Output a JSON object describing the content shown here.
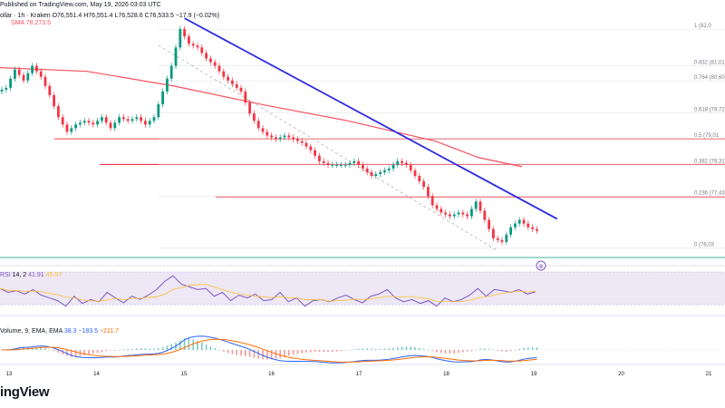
{
  "header": {
    "published": "Published on TradingView.com, May 19, 2026 03:03 UTC",
    "symbol_line": "ollar · 1h · Kraken",
    "ohlc": "O76,551.4 H76,551.4 L76,528.6 C76,533.5 −17.9 (−0.02%)",
    "sma_label": "SMA",
    "sma_value": "78,273.5"
  },
  "brand": {
    "logo_text": "ingView"
  },
  "colors": {
    "up": "#089981",
    "down": "#f23645",
    "trendline": "#2b2be0",
    "sma": "#f7525f",
    "support": "#f23645",
    "rsi_line": "#7e57c2",
    "rsi_band": "#ede7f6",
    "macd_line": "#2962ff",
    "signal_line": "#ff6d00",
    "green_line": "#089981"
  },
  "chart_data": {
    "type": "candlestick",
    "timeframe": "1h",
    "x_ticks": [
      "13",
      "14",
      "15",
      "16",
      "17",
      "18",
      "19",
      "20",
      "21"
    ],
    "price_series": {
      "name": "Price",
      "points": [
        [
          0,
          80.3
        ],
        [
          2,
          80.4
        ],
        [
          4,
          80.9
        ],
        [
          6,
          80.6
        ],
        [
          8,
          81.0
        ],
        [
          10,
          80.7
        ],
        [
          12,
          80.2
        ],
        [
          14,
          79.6
        ],
        [
          16,
          79.2
        ],
        [
          18,
          79.4
        ],
        [
          20,
          79.5
        ],
        [
          22,
          79.4
        ],
        [
          24,
          79.6
        ],
        [
          26,
          79.3
        ],
        [
          28,
          79.6
        ],
        [
          30,
          79.5
        ],
        [
          32,
          79.6
        ],
        [
          34,
          79.4
        ],
        [
          36,
          79.6
        ],
        [
          38,
          80.3
        ],
        [
          40,
          81.0
        ],
        [
          42,
          82.0
        ],
        [
          44,
          81.6
        ],
        [
          46,
          81.5
        ],
        [
          48,
          81.2
        ],
        [
          50,
          81.0
        ],
        [
          52,
          80.7
        ],
        [
          54,
          80.5
        ],
        [
          56,
          80.3
        ],
        [
          58,
          79.7
        ],
        [
          60,
          79.3
        ],
        [
          62,
          79.1
        ],
        [
          64,
          79.0
        ],
        [
          66,
          79.1
        ],
        [
          68,
          79.0
        ],
        [
          70,
          78.9
        ],
        [
          72,
          78.7
        ],
        [
          74,
          78.4
        ],
        [
          76,
          78.3
        ],
        [
          78,
          78.3
        ],
        [
          80,
          78.3
        ],
        [
          82,
          78.4
        ],
        [
          84,
          78.2
        ],
        [
          86,
          78.0
        ],
        [
          88,
          78.1
        ],
        [
          90,
          78.2
        ],
        [
          92,
          78.4
        ],
        [
          94,
          78.3
        ],
        [
          96,
          78.0
        ],
        [
          98,
          77.7
        ],
        [
          100,
          77.2
        ],
        [
          102,
          77.0
        ],
        [
          104,
          76.9
        ],
        [
          106,
          77.0
        ],
        [
          108,
          76.9
        ],
        [
          110,
          77.3
        ],
        [
          112,
          76.8
        ],
        [
          114,
          76.3
        ],
        [
          116,
          76.2
        ],
        [
          118,
          76.6
        ],
        [
          120,
          76.8
        ],
        [
          122,
          76.6
        ],
        [
          124,
          76.5
        ]
      ]
    },
    "sma_series": {
      "name": "SMA",
      "points": [
        [
          0,
          80.95
        ],
        [
          20,
          80.85
        ],
        [
          40,
          80.45
        ],
        [
          60,
          79.95
        ],
        [
          80,
          79.5
        ],
        [
          100,
          78.95
        ],
        [
          110,
          78.5
        ],
        [
          120,
          78.25
        ]
      ]
    },
    "trend_line": {
      "start": [
        42,
        82.0
      ],
      "end": [
        126,
        77.1
      ]
    },
    "fib_levels": [
      {
        "ratio": "1",
        "price": "(82,0"
      },
      {
        "ratio": "0.832",
        "price": "(81,010"
      },
      {
        "ratio": "0.764",
        "price": "(80,60"
      },
      {
        "ratio": "0.618",
        "price": "(79,72"
      },
      {
        "ratio": "0.5",
        "price": "(79,01"
      },
      {
        "ratio": "0.382",
        "price": "(78,31"
      },
      {
        "ratio": "0.236",
        "price": "(77,43"
      },
      {
        "ratio": "0",
        "price": "(76,03"
      }
    ],
    "horizontal_levels": [
      79.01,
      78.31,
      77.43
    ],
    "rsi": {
      "label": "RSI",
      "params": "14, 2",
      "value": "41.91",
      "value2": "45.07",
      "band": [
        30,
        70
      ],
      "values": [
        62,
        55,
        58,
        52,
        60,
        50,
        45,
        40,
        30,
        48,
        35,
        42,
        38,
        55,
        45,
        36,
        48,
        42,
        50,
        60,
        75,
        85,
        70,
        65,
        60,
        62,
        48,
        55,
        40,
        50,
        45,
        52,
        40,
        42,
        55,
        38,
        45,
        30,
        40,
        42,
        38,
        45,
        50,
        42,
        36,
        48,
        52,
        60,
        45,
        38,
        42,
        35,
        40,
        30,
        45,
        38,
        42,
        50,
        62,
        48,
        60,
        58,
        55,
        60,
        52,
        56
      ]
    },
    "macd": {
      "label": "Volume, 9, EMA, EMA",
      "value_short": "38.3",
      "value_a": "−183.5",
      "value_b": "−211.7"
    }
  }
}
